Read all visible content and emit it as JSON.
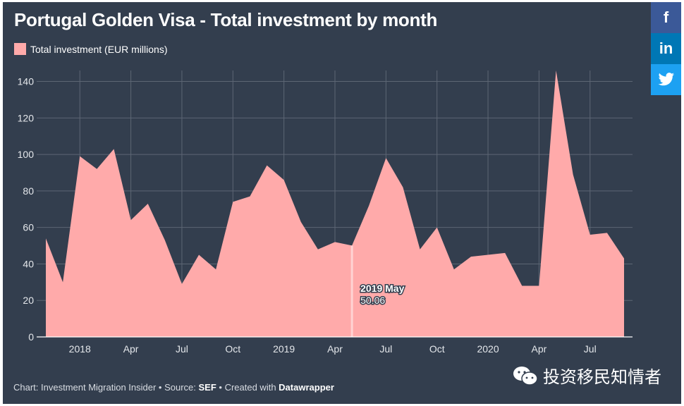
{
  "title": "Portugal Golden Visa - Total investment by month",
  "legend": {
    "label": "Total investment (EUR millions)",
    "color": "#ffaaaa"
  },
  "tooltip": {
    "label": "2019 May",
    "value": "50.06"
  },
  "footer": {
    "prefix": "Chart: Investment Migration Insider • Source: ",
    "source": "SEF",
    "middle": " • Created with ",
    "tool": "Datawrapper"
  },
  "watermark": {
    "text": "投资移民知情者",
    "icon": "wechat-icon"
  },
  "share": {
    "facebook": "f",
    "linkedin": "in",
    "twitter": "twitter-bird-icon"
  },
  "colors": {
    "background": "#333e4e",
    "area": "#ffaaaa",
    "grid": "#5d6674",
    "text": "#ffffff"
  },
  "chart_data": {
    "type": "area",
    "x": [
      "2017-11",
      "2017-12",
      "2018-01",
      "2018-02",
      "2018-03",
      "2018-04",
      "2018-05",
      "2018-06",
      "2018-07",
      "2018-08",
      "2018-09",
      "2018-10",
      "2018-11",
      "2018-12",
      "2019-01",
      "2019-02",
      "2019-03",
      "2019-04",
      "2019-05",
      "2019-06",
      "2019-07",
      "2019-08",
      "2019-09",
      "2019-10",
      "2019-11",
      "2019-12",
      "2020-01",
      "2020-02",
      "2020-03",
      "2020-04",
      "2020-05",
      "2020-06",
      "2020-07",
      "2020-08",
      "2020-09"
    ],
    "series": [
      {
        "name": "Total investment (EUR millions)",
        "values": [
          54,
          30,
          99,
          92,
          103,
          64,
          73,
          53,
          29,
          45,
          37,
          74,
          77,
          94,
          86,
          63,
          48,
          52,
          50.06,
          72,
          98,
          82,
          48,
          60,
          37,
          44,
          45,
          46,
          28,
          28,
          146,
          89,
          56,
          57,
          43
        ]
      }
    ],
    "x_ticks": [
      {
        "date": "2018-01",
        "label": "2018"
      },
      {
        "date": "2018-04",
        "label": "Apr"
      },
      {
        "date": "2018-07",
        "label": "Jul"
      },
      {
        "date": "2018-10",
        "label": "Oct"
      },
      {
        "date": "2019-01",
        "label": "2019"
      },
      {
        "date": "2019-04",
        "label": "Apr"
      },
      {
        "date": "2019-07",
        "label": "Jul"
      },
      {
        "date": "2019-10",
        "label": "Oct"
      },
      {
        "date": "2020-01",
        "label": "2020"
      },
      {
        "date": "2020-04",
        "label": "Apr"
      },
      {
        "date": "2020-07",
        "label": "Jul"
      }
    ],
    "y_ticks": [
      0,
      20,
      40,
      60,
      80,
      100,
      120,
      140
    ],
    "ylim": [
      0,
      146
    ],
    "highlight": "2019-05",
    "grid": true,
    "legend_position": "top-left"
  }
}
